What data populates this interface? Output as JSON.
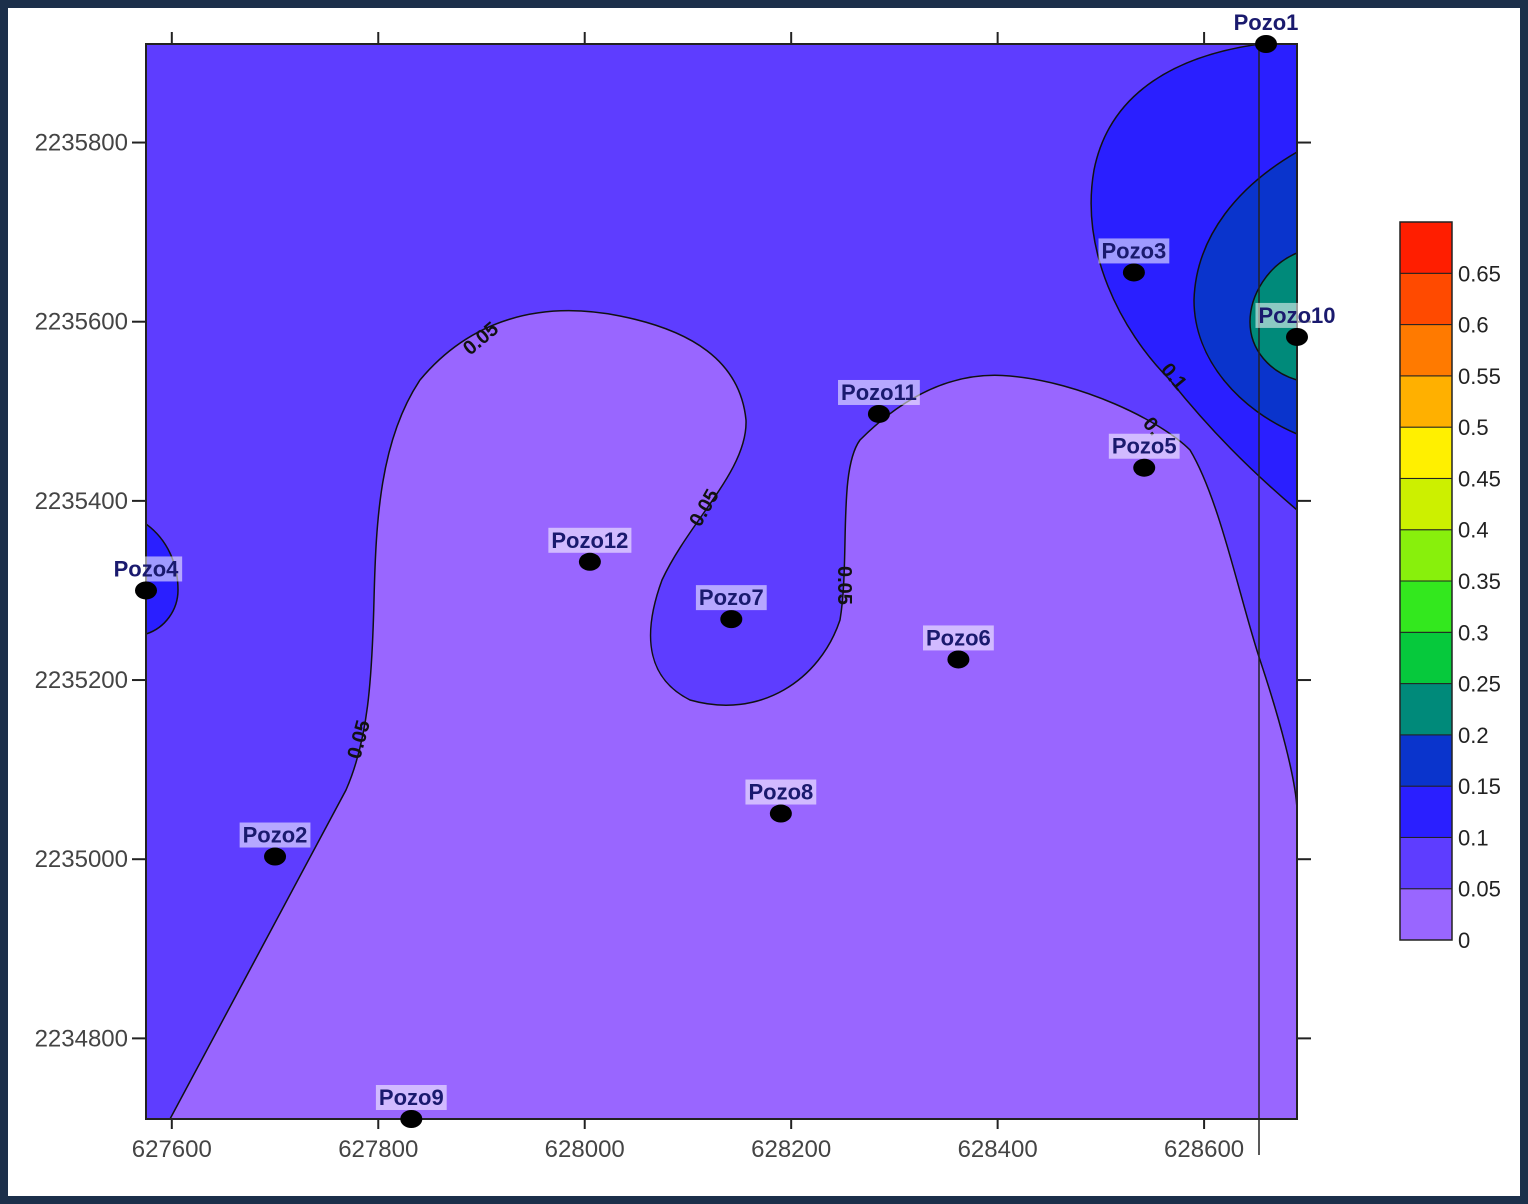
{
  "chart_data": {
    "type": "contour",
    "xlim": [
      627575,
      628690
    ],
    "ylim": [
      2234710,
      2235910
    ],
    "x_ticks": [
      627600,
      627800,
      628000,
      628200,
      628400,
      628600
    ],
    "y_ticks": [
      2234800,
      2235000,
      2235200,
      2235400,
      2235600,
      2235800
    ],
    "x_tick_labels": [
      "627600",
      "627800",
      "628000",
      "628200",
      "628400",
      "628600"
    ],
    "y_tick_labels": [
      "2234800",
      "2235000",
      "2235200",
      "2235400",
      "2235600",
      "2235800"
    ],
    "wells": [
      {
        "name": "Pozo1",
        "x": 628660,
        "y": 2235910
      },
      {
        "name": "Pozo2",
        "x": 627700,
        "y": 2235003
      },
      {
        "name": "Pozo3",
        "x": 628532,
        "y": 2235655
      },
      {
        "name": "Pozo4",
        "x": 627575,
        "y": 2235300
      },
      {
        "name": "Pozo5",
        "x": 628542,
        "y": 2235437
      },
      {
        "name": "Pozo6",
        "x": 628362,
        "y": 2235223
      },
      {
        "name": "Pozo7",
        "x": 628142,
        "y": 2235268
      },
      {
        "name": "Pozo8",
        "x": 628190,
        "y": 2235051
      },
      {
        "name": "Pozo9",
        "x": 627832,
        "y": 2234710
      },
      {
        "name": "Pozo10",
        "x": 628690,
        "y": 2235583
      },
      {
        "name": "Pozo11",
        "x": 628285,
        "y": 2235497
      },
      {
        "name": "Pozo12",
        "x": 628005,
        "y": 2235332
      }
    ],
    "contour_labels": [
      "0.05",
      "0.05",
      "0.05",
      "0.05",
      "0.1",
      "0."
    ],
    "levels": [
      0,
      0.05,
      0.1,
      0.15,
      0.2,
      0.25,
      0.3,
      0.35,
      0.4,
      0.45,
      0.5,
      0.55,
      0.6,
      0.65,
      0.7
    ],
    "colorbar_labels": [
      "0.65",
      "0.6",
      "0.55",
      "0.5",
      "0.45",
      "0.4",
      "0.35",
      "0.3",
      "0.25",
      "0.2",
      "0.15",
      "0.1",
      "0.05",
      "0"
    ],
    "colors": [
      "#9966ff",
      "#5e3dff",
      "#2a1fff",
      "#0a34cc",
      "#008a7a",
      "#06c93c",
      "#33e81e",
      "#88f00c",
      "#ccf000",
      "#fff000",
      "#ffb000",
      "#ff7a00",
      "#ff4a00",
      "#ff1e00"
    ]
  }
}
